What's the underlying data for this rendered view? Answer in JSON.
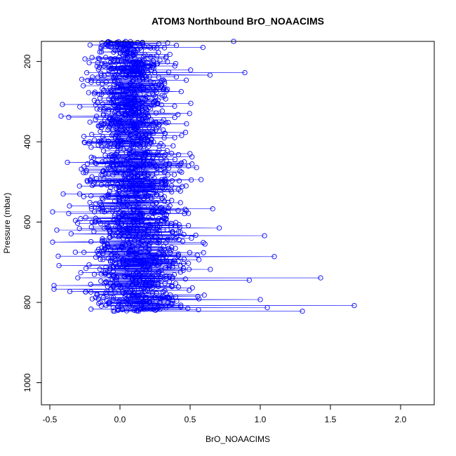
{
  "chart_data": {
    "type": "line",
    "title": "ATOM3 Northbound BrO_NOAACIMS",
    "xlabel": "BrO_NOAACIMS",
    "ylabel": "Pressure (mbar)",
    "xlim": [
      -0.56,
      2.24
    ],
    "ylim": [
      1055,
      150
    ],
    "y_reversed": true,
    "x_ticks": [
      -0.5,
      0.0,
      0.5,
      1.0,
      1.5,
      2.0
    ],
    "x_tick_labels": [
      "-0.5",
      "0.0",
      "0.5",
      "1.0",
      "1.5",
      "2.0"
    ],
    "y_ticks": [
      200,
      400,
      600,
      800,
      1000
    ],
    "y_tick_labels": [
      "200",
      "400",
      "600",
      "800",
      "1000"
    ],
    "grid": false,
    "legend": "none",
    "series_color": "#0000ff",
    "marker": "open-circle",
    "pressure_range": [
      150,
      822
    ],
    "notable_points": [
      {
        "x": 1.67,
        "y": 808
      },
      {
        "x": 1.43,
        "y": 739
      },
      {
        "x": 1.3,
        "y": 822
      },
      {
        "x": 1.1,
        "y": 686
      },
      {
        "x": 1.05,
        "y": 813
      },
      {
        "x": 1.03,
        "y": 634
      },
      {
        "x": 1.0,
        "y": 793
      },
      {
        "x": 0.89,
        "y": 228
      },
      {
        "x": 0.81,
        "y": 150
      },
      {
        "x": -0.47,
        "y": 758
      },
      {
        "x": -0.47,
        "y": 767
      },
      {
        "x": -0.45,
        "y": 620
      },
      {
        "x": -0.44,
        "y": 685
      },
      {
        "x": -0.42,
        "y": 336
      },
      {
        "x": -0.41,
        "y": 307
      }
    ]
  }
}
